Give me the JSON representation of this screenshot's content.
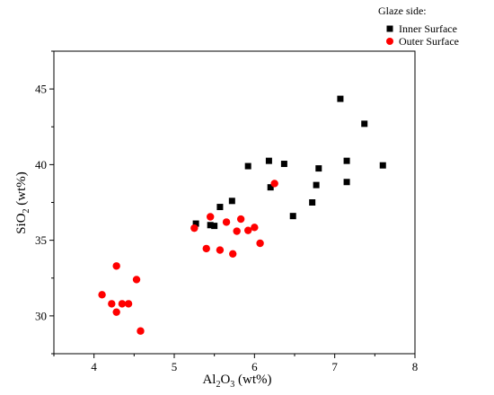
{
  "chart_data": {
    "type": "scatter",
    "title": "",
    "xlabel": {
      "base": "Al",
      "sub1": "2",
      "mid": "O",
      "sub2": "3",
      "unit": " (wt%)"
    },
    "ylabel": {
      "base": "SiO",
      "sub": "2",
      "unit": " (wt%)"
    },
    "xlim": [
      3.5,
      8
    ],
    "ylim": [
      27.5,
      47.5
    ],
    "xticks": [
      4,
      5,
      6,
      7,
      8
    ],
    "yticks": [
      30,
      35,
      40,
      45
    ],
    "grid": false,
    "legend": {
      "title": "Glaze side:",
      "position": "top-right"
    },
    "series": [
      {
        "name": "Inner Surface",
        "marker": "square",
        "color": "#000000",
        "points": [
          [
            5.27,
            36.1
          ],
          [
            5.45,
            36.0
          ],
          [
            5.5,
            35.95
          ],
          [
            5.57,
            37.2
          ],
          [
            5.72,
            37.6
          ],
          [
            5.92,
            39.9
          ],
          [
            6.18,
            40.25
          ],
          [
            6.2,
            38.5
          ],
          [
            6.37,
            40.05
          ],
          [
            6.48,
            36.6
          ],
          [
            6.72,
            37.5
          ],
          [
            6.77,
            38.65
          ],
          [
            6.8,
            39.75
          ],
          [
            7.07,
            44.35
          ],
          [
            7.15,
            40.25
          ],
          [
            7.15,
            38.85
          ],
          [
            7.37,
            42.7
          ],
          [
            7.6,
            39.95
          ]
        ]
      },
      {
        "name": "Outer Surface",
        "marker": "circle",
        "color": "#ff0000",
        "points": [
          [
            4.1,
            31.4
          ],
          [
            4.22,
            30.8
          ],
          [
            4.28,
            30.25
          ],
          [
            4.28,
            33.3
          ],
          [
            4.35,
            30.8
          ],
          [
            4.43,
            30.8
          ],
          [
            4.53,
            32.4
          ],
          [
            4.58,
            29.0
          ],
          [
            5.25,
            35.8
          ],
          [
            5.4,
            34.45
          ],
          [
            5.45,
            36.55
          ],
          [
            5.57,
            34.35
          ],
          [
            5.65,
            36.2
          ],
          [
            5.73,
            34.1
          ],
          [
            5.78,
            35.6
          ],
          [
            5.83,
            36.4
          ],
          [
            5.92,
            35.65
          ],
          [
            6.0,
            35.85
          ],
          [
            6.07,
            34.8
          ],
          [
            6.25,
            38.75
          ]
        ]
      }
    ]
  }
}
